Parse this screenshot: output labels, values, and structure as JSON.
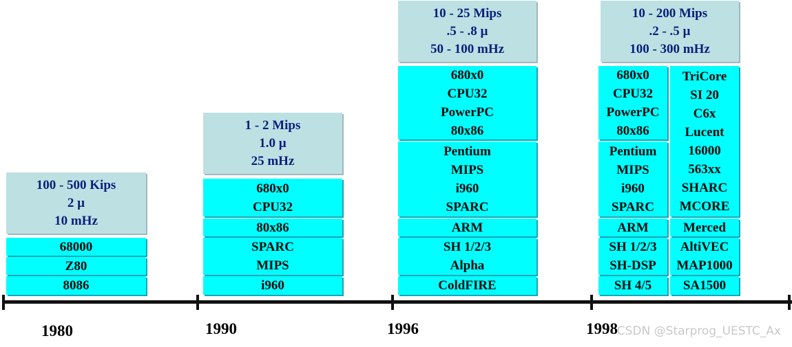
{
  "columns": [
    {
      "header": [
        "100 - 500 Kips",
        "2 µ",
        "10 mHz"
      ],
      "groups": [
        [
          "68000"
        ],
        [
          "Z80"
        ],
        [
          "8086"
        ]
      ]
    },
    {
      "header": [
        "1 - 2 Mips",
        "1.0 µ",
        "25 mHz"
      ],
      "groups": [
        [
          "680x0",
          "CPU32"
        ],
        [
          "80x86"
        ],
        [
          "SPARC",
          "MIPS"
        ],
        [
          "i960"
        ]
      ]
    },
    {
      "header": [
        "10 - 25 Mips",
        ".5 - .8 µ",
        "50 - 100 mHz"
      ],
      "groups": [
        [
          "680x0",
          "CPU32",
          "PowerPC",
          "80x86"
        ],
        [
          "Pentium",
          "MIPS",
          "i960",
          "SPARC"
        ],
        [
          "ARM"
        ],
        [
          "SH 1/2/3",
          "Alpha"
        ],
        [
          "ColdFIRE"
        ]
      ]
    },
    {
      "header": [
        "10 - 200 Mips",
        ".2 - .5 µ",
        "100 - 300 mHz"
      ],
      "groups_left": [
        [
          "680x0",
          "CPU32",
          "PowerPC",
          "80x86"
        ],
        [
          "Pentium",
          "MIPS",
          "i960",
          "SPARC"
        ],
        [
          "ARM"
        ],
        [
          "SH 1/2/3",
          "SH-DSP"
        ],
        [
          "SH 4/5"
        ]
      ],
      "groups_right": [
        [
          "TriCore",
          "SI 20",
          "C6x",
          "Lucent",
          "16000",
          "563xx",
          "SHARC",
          "MCORE"
        ],
        [
          "Merced"
        ],
        [
          "AltiVEC",
          "MAP1000"
        ],
        [
          "SA1500"
        ]
      ]
    }
  ],
  "timeline": {
    "years": [
      "1980",
      "1990",
      "1996",
      "1998"
    ]
  },
  "watermark": "CSDN @Starprog_UESTC_Ax",
  "colors": {
    "header_bg": "#bde0e3",
    "header_text": "#0a1f7a",
    "cell_bg": "#00ffff",
    "axis": "#111111"
  }
}
